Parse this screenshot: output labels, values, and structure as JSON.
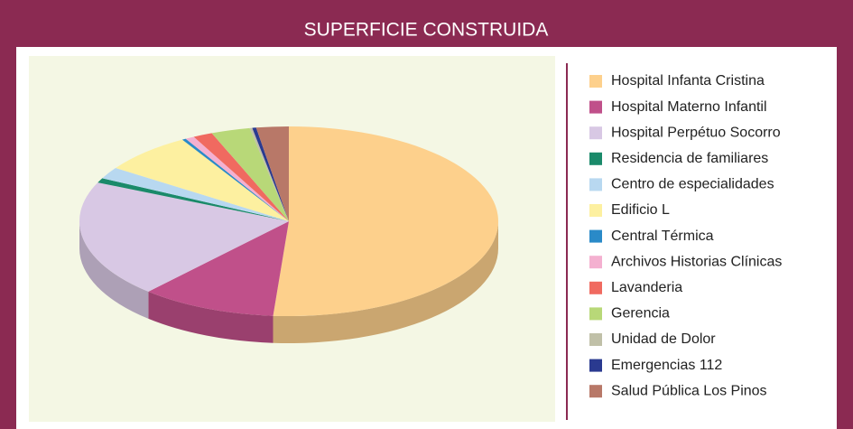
{
  "chart_data": {
    "type": "pie3d",
    "title": "SUPERFICIE CONSTRUIDA",
    "categories": [
      "Hospital Infanta Cristina",
      "Hospital Materno Infantil",
      "Hospital Perpétuo Socorro",
      "Residencia de familiares",
      "Centro de especialidades",
      "Edificio L",
      "Central Térmica",
      "Archivos Historias Clínicas",
      "Lavanderia",
      "Gerencia",
      "Unidad de Dolor",
      "Emergencias 112",
      "Salud Pública Los Pinos"
    ],
    "values": [
      51.2,
      10.5,
      20,
      0.8,
      2,
      7,
      0.3,
      0.7,
      1.5,
      3,
      0.2,
      0.3,
      2.5
    ],
    "colors": [
      "#fdd08c",
      "#c0508a",
      "#d8c8e4",
      "#1a8a6a",
      "#b8d8f0",
      "#fdf0a0",
      "#2a8ac8",
      "#f4b0d0",
      "#f06a60",
      "#b8d878",
      "#c0c0a8",
      "#2a3a90",
      "#b87868"
    ]
  }
}
